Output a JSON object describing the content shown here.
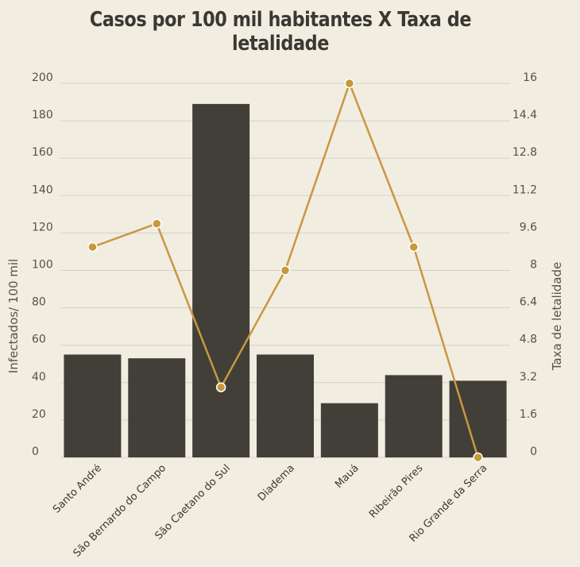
{
  "chart_data": {
    "type": "bar+line",
    "title": "Casos por 100 mil habitantes X Taxa de letalidade",
    "categories": [
      "Santo André",
      "São Bernardo do Campo",
      "São Caetano do Sul",
      "Diadema",
      "Mauá",
      "Ribeirão Pires",
      "Rio Grande da Serra"
    ],
    "series": [
      {
        "type": "bar",
        "axis": "left",
        "values": [
          55,
          53,
          189,
          55,
          29,
          44,
          41
        ]
      },
      {
        "type": "line",
        "axis": "right",
        "values": [
          9,
          10,
          3,
          8,
          16,
          9,
          0
        ]
      }
    ],
    "y_left": {
      "label": "Infectados/ 100 mil",
      "min": 0,
      "max": 200,
      "ticks": [
        "0",
        "20",
        "40",
        "60",
        "80",
        "100",
        "120",
        "140",
        "160",
        "180",
        "200"
      ]
    },
    "y_right": {
      "label": "Taxa de letalidade",
      "min": 0,
      "max": 16,
      "ticks": [
        "0",
        "1.6",
        "3.2",
        "4.8",
        "6.4",
        "8",
        "9.6",
        "11.2",
        "12.8",
        "14.4",
        "16"
      ]
    },
    "grid": true,
    "colors": {
      "background": "#f2ede1",
      "bar": "#423f38",
      "line": "#c8983f",
      "grid": "#d6d1c4"
    }
  }
}
